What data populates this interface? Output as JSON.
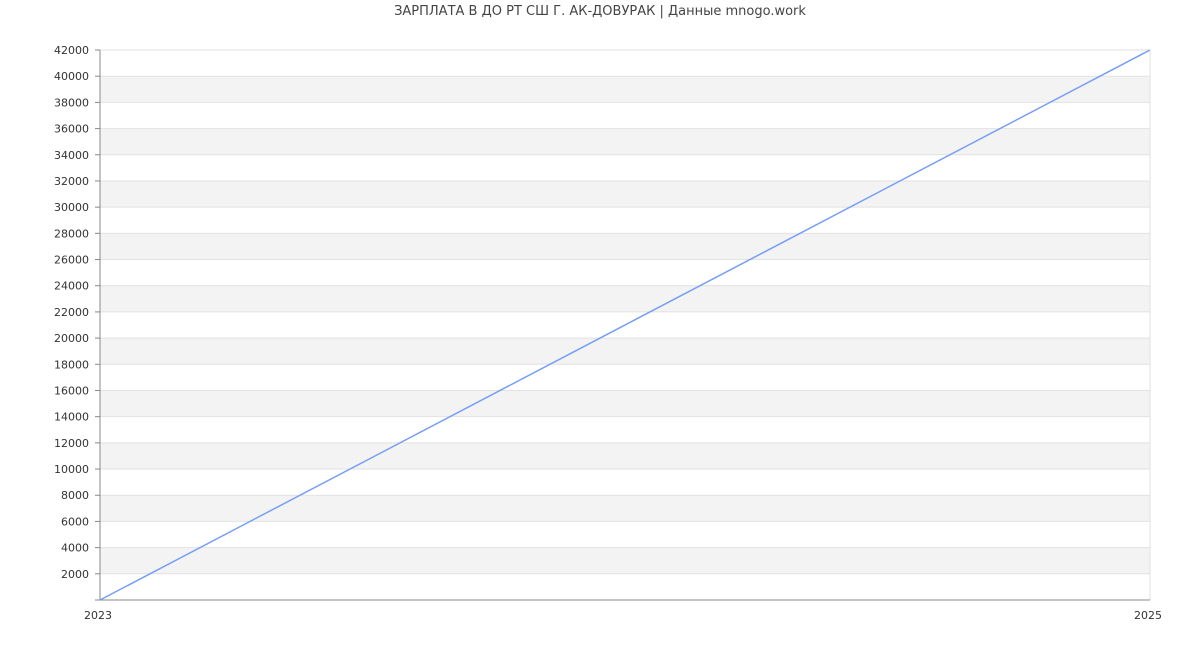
{
  "chart_data": {
    "type": "line",
    "title": "ЗАРПЛАТА В ДО РТ СШ Г. АК-ДОВУРАК | Данные mnogo.work",
    "xlabel": "",
    "ylabel": "",
    "x": [
      2023,
      2025
    ],
    "x_ticks": [
      "2023",
      "2025"
    ],
    "xlim": [
      2023,
      2025
    ],
    "ylim": [
      0,
      42000
    ],
    "y_ticks": [
      2000,
      4000,
      6000,
      8000,
      10000,
      12000,
      14000,
      16000,
      18000,
      20000,
      22000,
      24000,
      26000,
      28000,
      30000,
      32000,
      34000,
      36000,
      38000,
      40000,
      42000
    ],
    "series": [
      {
        "values": [
          0,
          42000
        ],
        "color": "#779ef5"
      }
    ],
    "grid": true,
    "band_color": "#f3f3f3",
    "legend": "none"
  }
}
